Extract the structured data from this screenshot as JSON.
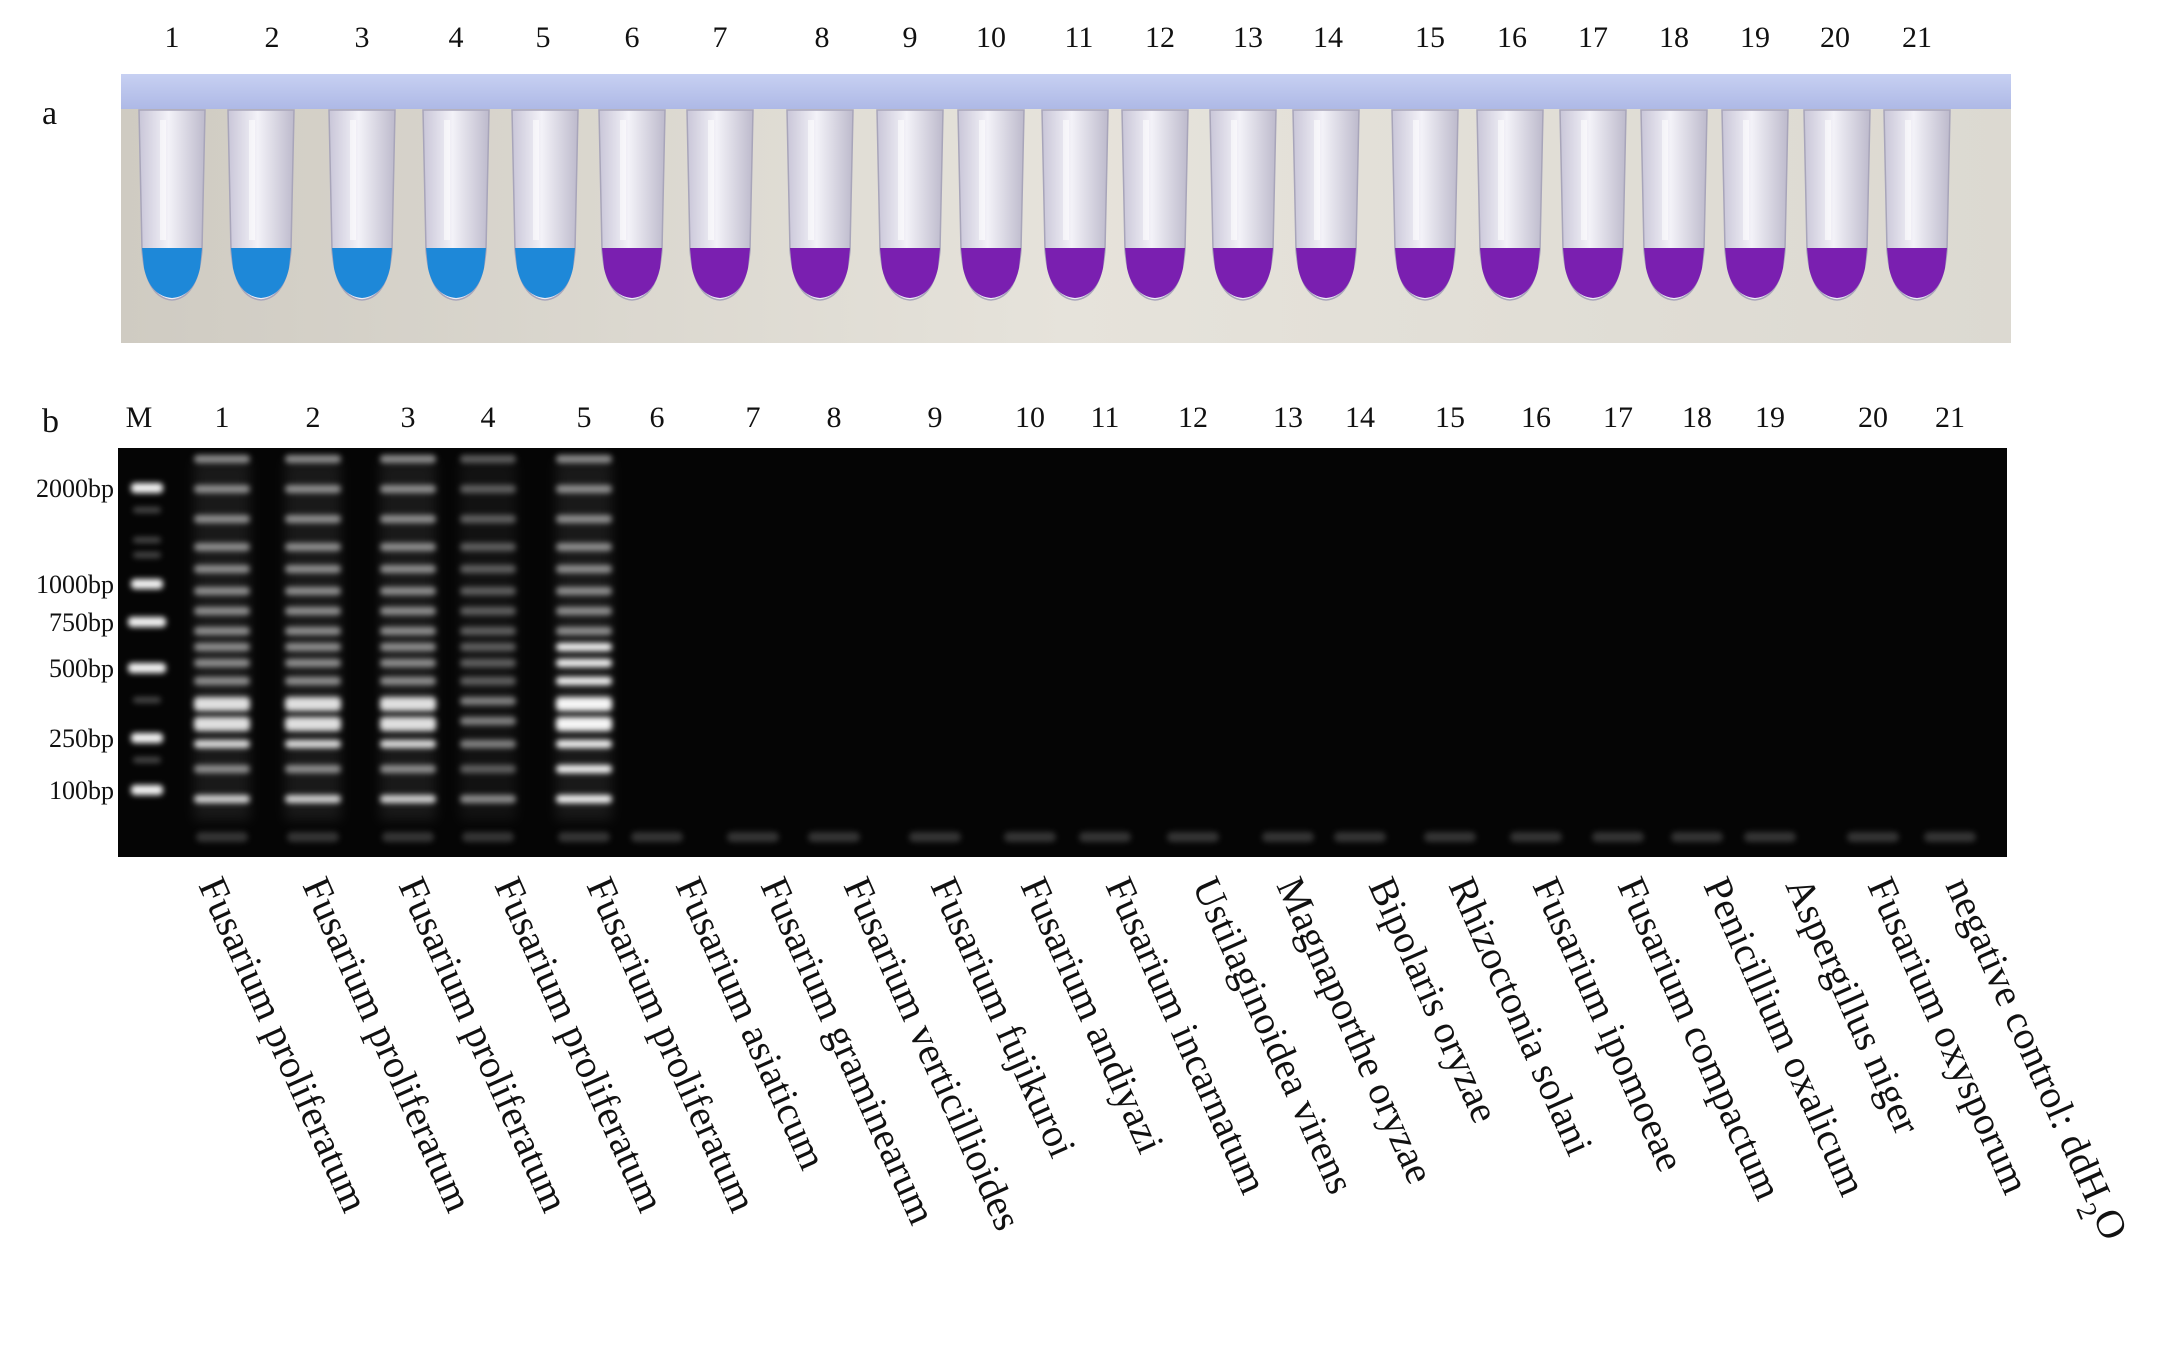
{
  "panel_a": {
    "label": "a",
    "lane_numbers": [
      "1",
      "2",
      "3",
      "4",
      "5",
      "6",
      "7",
      "8",
      "9",
      "10",
      "11",
      "12",
      "13",
      "14",
      "15",
      "16",
      "17",
      "18",
      "19",
      "20",
      "21"
    ],
    "tube_colors": [
      "blue",
      "blue",
      "blue",
      "blue",
      "blue",
      "purple",
      "purple",
      "purple",
      "purple",
      "purple",
      "purple",
      "purple",
      "purple",
      "purple",
      "purple",
      "purple",
      "purple",
      "purple",
      "purple",
      "purple",
      "purple"
    ],
    "color_values": {
      "blue": "#1e88d8",
      "purple": "#7a1fb0"
    }
  },
  "panel_b": {
    "label": "b",
    "marker_label": "M",
    "lane_numbers": [
      "1",
      "2",
      "3",
      "4",
      "5",
      "6",
      "7",
      "8",
      "9",
      "10",
      "11",
      "12",
      "13",
      "14",
      "15",
      "16",
      "17",
      "18",
      "19",
      "20",
      "21"
    ],
    "ladder_labels": [
      "2000bp",
      "1000bp",
      "750bp",
      "500bp",
      "250bp",
      "100bp"
    ],
    "amplified": [
      true,
      true,
      true,
      true,
      true,
      false,
      false,
      false,
      false,
      false,
      false,
      false,
      false,
      false,
      false,
      false,
      false,
      false,
      false,
      false,
      false
    ]
  },
  "species": [
    "Fusarium proliferatum",
    "Fusarium proliferatum",
    "Fusarium proliferatum",
    "Fusarium proliferatum",
    "Fusarium proliferatum",
    "Fusarium asiaticum",
    "Fusarium graminearum",
    "Fusarium verticillioides",
    "Fusarium fujikuroi",
    "Fusarium andiyazi",
    "Fusarium incarnatum",
    "Ustilaginoidea virens",
    "Magnaporthe oryzae",
    "Bipolaris oryzae",
    "Rhizoctonia solani",
    "Fusarium ipomoeae",
    "Fusarium compactum",
    "Penicillium oxalicum",
    "Aspergillus niger",
    "Fusarium oxysporum"
  ],
  "negative_control": {
    "text": "negative control: ddH",
    "subscript": "2",
    "suffix": "O"
  }
}
